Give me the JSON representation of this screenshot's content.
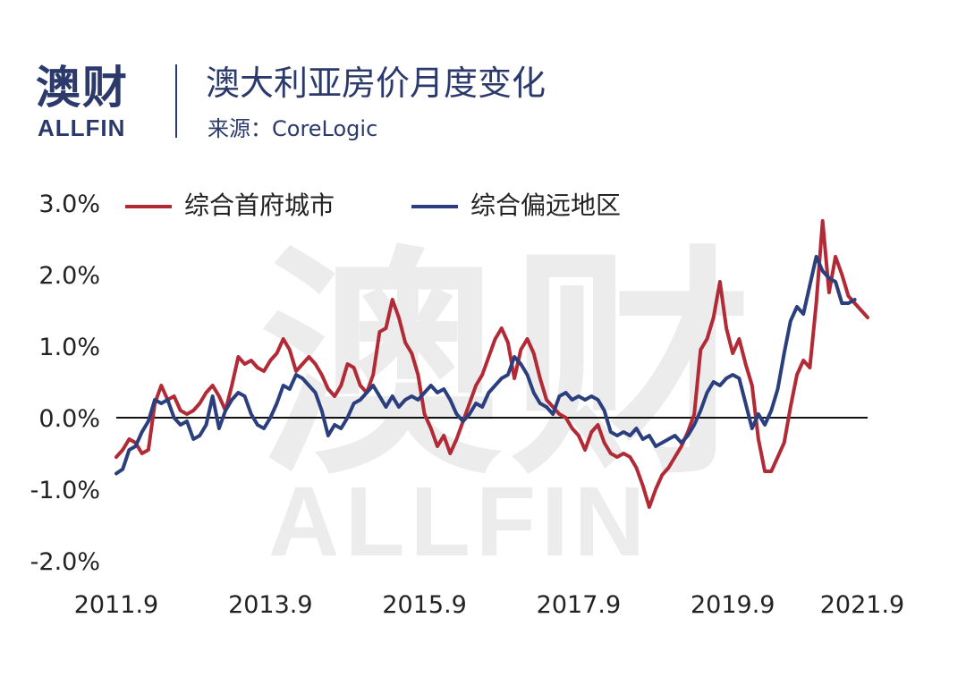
{
  "logo": {
    "cn": "澳财",
    "en": "ALLFIN"
  },
  "header": {
    "title": "澳大利亚房价月度变化",
    "subtitle": "来源：CoreLogic"
  },
  "watermark": {
    "cn": "澳财",
    "en": "ALLFIN"
  },
  "chart_data": {
    "type": "line",
    "title": "澳大利亚房价月度变化",
    "xlabel": "",
    "ylabel": "",
    "ylim": [
      -2.0,
      3.0
    ],
    "y_ticks": [
      "-2.0%",
      "-1.0%",
      "0.0%",
      "1.0%",
      "2.0%",
      "3.0%"
    ],
    "y_tick_values": [
      -2.0,
      -1.0,
      0.0,
      1.0,
      2.0,
      3.0
    ],
    "x_ticks": [
      "2011.9",
      "2013.9",
      "2015.9",
      "2017.9",
      "2019.9",
      "2021.9"
    ],
    "x_tick_index": [
      0,
      24,
      48,
      72,
      96,
      120
    ],
    "x_start": "2011.9",
    "legend_position": "top",
    "zero_line": true,
    "series": [
      {
        "name": "综合首府城市",
        "color": "#b22a35",
        "values": [
          -0.55,
          -0.45,
          -0.3,
          -0.35,
          -0.5,
          -0.45,
          0.2,
          0.45,
          0.25,
          0.3,
          0.1,
          0.05,
          0.1,
          0.2,
          0.35,
          0.45,
          0.3,
          0.1,
          0.45,
          0.85,
          0.75,
          0.8,
          0.7,
          0.65,
          0.8,
          0.9,
          1.1,
          0.95,
          0.65,
          0.75,
          0.85,
          0.75,
          0.6,
          0.4,
          0.3,
          0.45,
          0.75,
          0.7,
          0.45,
          0.35,
          0.6,
          1.2,
          1.25,
          1.65,
          1.4,
          1.05,
          0.9,
          0.6,
          0.05,
          -0.15,
          -0.4,
          -0.25,
          -0.5,
          -0.3,
          -0.05,
          0.2,
          0.45,
          0.6,
          0.85,
          1.1,
          1.25,
          1.05,
          0.55,
          0.95,
          1.1,
          0.9,
          0.55,
          0.25,
          0.15,
          0.05,
          0.0,
          -0.15,
          -0.25,
          -0.45,
          -0.2,
          -0.1,
          -0.35,
          -0.5,
          -0.55,
          -0.5,
          -0.55,
          -0.7,
          -0.95,
          -1.25,
          -1.0,
          -0.8,
          -0.7,
          -0.55,
          -0.4,
          -0.2,
          0.05,
          0.95,
          1.1,
          1.4,
          1.9,
          1.25,
          0.9,
          1.1,
          0.75,
          0.45,
          -0.3,
          -0.75,
          -0.75,
          -0.55,
          -0.35,
          0.15,
          0.6,
          0.8,
          0.7,
          1.6,
          2.75,
          1.75,
          2.25,
          2.0,
          1.7,
          1.6,
          1.5,
          1.4
        ]
      },
      {
        "name": "综合偏远地区",
        "color": "#2b3f7e",
        "values": [
          -0.78,
          -0.72,
          -0.45,
          -0.4,
          -0.2,
          -0.05,
          0.25,
          0.2,
          0.25,
          0.0,
          -0.1,
          -0.05,
          -0.3,
          -0.25,
          -0.1,
          0.3,
          -0.15,
          0.1,
          0.25,
          0.35,
          0.3,
          0.05,
          -0.1,
          -0.15,
          0.0,
          0.2,
          0.45,
          0.4,
          0.6,
          0.55,
          0.45,
          0.35,
          0.1,
          -0.25,
          -0.1,
          -0.15,
          0.0,
          0.2,
          0.25,
          0.35,
          0.45,
          0.3,
          0.15,
          0.3,
          0.15,
          0.25,
          0.3,
          0.25,
          0.35,
          0.45,
          0.35,
          0.4,
          0.25,
          0.05,
          -0.05,
          0.05,
          0.2,
          0.15,
          0.35,
          0.45,
          0.55,
          0.6,
          0.85,
          0.75,
          0.6,
          0.35,
          0.2,
          0.15,
          0.05,
          0.3,
          0.35,
          0.25,
          0.3,
          0.25,
          0.3,
          0.25,
          0.1,
          -0.2,
          -0.25,
          -0.2,
          -0.25,
          -0.15,
          -0.3,
          -0.25,
          -0.4,
          -0.35,
          -0.3,
          -0.25,
          -0.35,
          -0.25,
          -0.1,
          0.1,
          0.35,
          0.5,
          0.45,
          0.55,
          0.6,
          0.55,
          0.2,
          -0.15,
          0.05,
          -0.1,
          0.1,
          0.4,
          0.9,
          1.35,
          1.55,
          1.45,
          1.85,
          2.25,
          2.05,
          1.95,
          1.9,
          1.6,
          1.6,
          1.65
        ]
      }
    ]
  }
}
